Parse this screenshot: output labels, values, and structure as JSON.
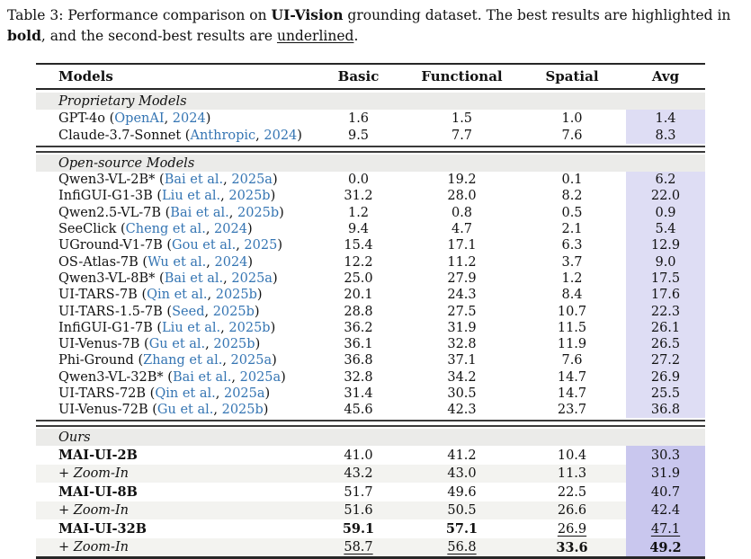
{
  "caption": {
    "segments": [
      {
        "text": "Table 3: Performance comparison on "
      },
      {
        "text": "UI-Vision",
        "bold": true
      },
      {
        "text": " grounding dataset. The best results are highlighted in "
      },
      {
        "text": "bold",
        "bold": true
      },
      {
        "text": ", and the second-best results are "
      },
      {
        "text": "underlined",
        "underline": true
      },
      {
        "text": "."
      }
    ]
  },
  "table": {
    "columns": [
      "Models",
      "Basic",
      "Functional",
      "Spatial",
      "Avg"
    ],
    "colors": {
      "link": "#3575b3",
      "avg_highlight": "#deddf4",
      "avg_highlight_ours": "#c9c7ee",
      "section_band": "#ebebe9",
      "row_shade": "#f3f3f0"
    },
    "sections": [
      {
        "label": "Proprietary Models",
        "rows": [
          {
            "model": "GPT-4o",
            "authors": "OpenAI",
            "year": "2024",
            "values": [
              "1.6",
              "1.5",
              "1.0",
              "1.4"
            ]
          },
          {
            "model": "Claude-3.7-Sonnet",
            "authors": "Anthropic",
            "year": "2024",
            "values": [
              "9.5",
              "7.7",
              "7.6",
              "8.3"
            ]
          }
        ]
      },
      {
        "label": "Open-source Models",
        "rows": [
          {
            "model": "Qwen3-VL-2B*",
            "authors": "Bai et al.",
            "year": "2025a",
            "values": [
              "0.0",
              "19.2",
              "0.1",
              "6.2"
            ]
          },
          {
            "model": "InfiGUI-G1-3B",
            "authors": "Liu et al.",
            "year": "2025b",
            "values": [
              "31.2",
              "28.0",
              "8.2",
              "22.0"
            ]
          },
          {
            "model": "Qwen2.5-VL-7B",
            "authors": "Bai et al.",
            "year": "2025b",
            "values": [
              "1.2",
              "0.8",
              "0.5",
              "0.9"
            ]
          },
          {
            "model": "SeeClick",
            "authors": "Cheng et al.",
            "year": "2024",
            "values": [
              "9.4",
              "4.7",
              "2.1",
              "5.4"
            ]
          },
          {
            "model": "UGround-V1-7B",
            "authors": "Gou et al.",
            "year": "2025",
            "values": [
              "15.4",
              "17.1",
              "6.3",
              "12.9"
            ]
          },
          {
            "model": "OS-Atlas-7B",
            "authors": "Wu et al.",
            "year": "2024",
            "values": [
              "12.2",
              "11.2",
              "3.7",
              "9.0"
            ]
          },
          {
            "model": "Qwen3-VL-8B*",
            "authors": "Bai et al.",
            "year": "2025a",
            "values": [
              "25.0",
              "27.9",
              "1.2",
              "17.5"
            ]
          },
          {
            "model": "UI-TARS-7B",
            "authors": "Qin et al.",
            "year": "2025b",
            "values": [
              "20.1",
              "24.3",
              "8.4",
              "17.6"
            ]
          },
          {
            "model": "UI-TARS-1.5-7B",
            "authors": "Seed",
            "year": "2025b",
            "values": [
              "28.8",
              "27.5",
              "10.7",
              "22.3"
            ]
          },
          {
            "model": "InfiGUI-G1-7B",
            "authors": "Liu et al.",
            "year": "2025b",
            "values": [
              "36.2",
              "31.9",
              "11.5",
              "26.1"
            ]
          },
          {
            "model": "UI-Venus-7B",
            "authors": "Gu et al.",
            "year": "2025b",
            "values": [
              "36.1",
              "32.8",
              "11.9",
              "26.5"
            ]
          },
          {
            "model": "Phi-Ground",
            "authors": "Zhang et al.",
            "year": "2025a",
            "values": [
              "36.8",
              "37.1",
              "7.6",
              "27.2"
            ]
          },
          {
            "model": "Qwen3-VL-32B*",
            "authors": "Bai et al.",
            "year": "2025a",
            "values": [
              "32.8",
              "34.2",
              "14.7",
              "26.9"
            ]
          },
          {
            "model": "UI-TARS-72B",
            "authors": "Qin et al.",
            "year": "2025a",
            "values": [
              "31.4",
              "30.5",
              "14.7",
              "25.5"
            ]
          },
          {
            "model": "UI-Venus-72B",
            "authors": "Gu et al.",
            "year": "2025b",
            "values": [
              "45.6",
              "42.3",
              "23.7",
              "36.8"
            ]
          }
        ]
      },
      {
        "label": "Ours",
        "rows": [
          {
            "model": "MAI-UI-2B",
            "bold": true,
            "values": [
              "41.0",
              "41.2",
              "10.4",
              "30.3"
            ]
          },
          {
            "model": "+ Zoom-In",
            "italic": true,
            "shaded": true,
            "values": [
              "43.2",
              "43.0",
              "11.3",
              "31.9"
            ]
          },
          {
            "model": "MAI-UI-8B",
            "bold": true,
            "values": [
              "51.7",
              "49.6",
              "22.5",
              "40.7"
            ]
          },
          {
            "model": "+ Zoom-In",
            "italic": true,
            "shaded": true,
            "values": [
              "51.6",
              "50.5",
              "26.6",
              "42.4"
            ]
          },
          {
            "model": "MAI-UI-32B",
            "bold": true,
            "values": [
              "59.1",
              "57.1",
              "26.9",
              "47.1"
            ],
            "styles": [
              "bold",
              "bold",
              "underline",
              "underline"
            ]
          },
          {
            "model": "+ Zoom-In",
            "italic": true,
            "shaded": true,
            "values": [
              "58.7",
              "56.8",
              "33.6",
              "49.2"
            ],
            "styles": [
              "underline",
              "underline",
              "bold",
              "bold"
            ]
          }
        ]
      }
    ]
  }
}
